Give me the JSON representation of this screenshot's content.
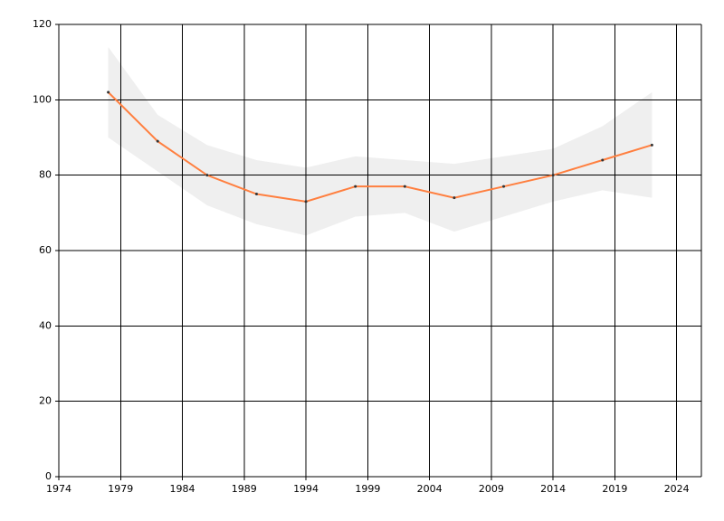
{
  "chart_data": {
    "type": "line",
    "x": [
      1978,
      1982,
      1986,
      1990,
      1994,
      1998,
      2002,
      2006,
      2010,
      2014,
      2018,
      2022
    ],
    "series": [
      {
        "color": "#ff7f3f",
        "values": [
          102,
          89,
          80,
          75,
          73,
          77,
          77,
          74,
          77,
          80,
          84,
          88
        ]
      }
    ],
    "band": {
      "color": "#efefef",
      "upper": [
        114,
        96,
        88,
        84,
        82,
        85,
        84,
        83,
        85,
        87,
        93,
        102
      ],
      "lower": [
        90,
        81,
        72,
        67,
        64,
        69,
        70,
        65,
        69,
        73,
        76,
        74
      ]
    },
    "xlim": [
      1974,
      2026
    ],
    "xticks": [
      1974,
      1979,
      1984,
      1989,
      1994,
      1999,
      2004,
      2009,
      2014,
      2019,
      2024
    ],
    "ylim": [
      0,
      120
    ],
    "yticks": [
      0,
      20,
      40,
      60,
      80,
      100,
      120
    ],
    "grid": true
  }
}
